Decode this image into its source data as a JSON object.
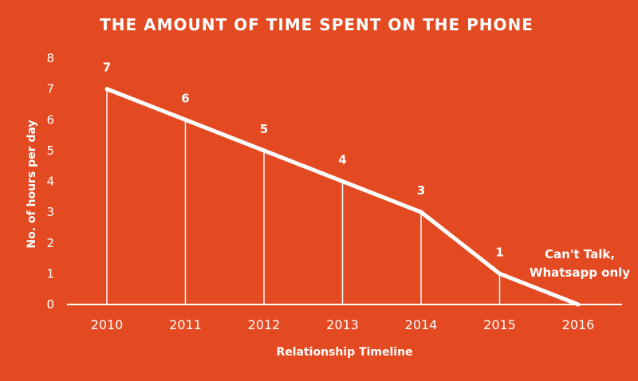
{
  "colors": {
    "background": "#E44A22",
    "foreground": "#FFFFFF"
  },
  "chart_data": {
    "type": "line",
    "title": "THE AMOUNT OF TIME SPENT ON THE PHONE",
    "xlabel": "Relationship Timeline",
    "ylabel": "No. of hours per day",
    "categories": [
      "2010",
      "2011",
      "2012",
      "2013",
      "2014",
      "2015",
      "2016"
    ],
    "series": [
      {
        "values": [
          7,
          6,
          5,
          4,
          3,
          1,
          0
        ]
      }
    ],
    "data_labels": [
      "7",
      "6",
      "5",
      "4",
      "3",
      "1",
      [
        "Can't Talk,",
        "Whatsapp only"
      ]
    ],
    "ylim": [
      0,
      8
    ],
    "yticks": [
      "0",
      "1",
      "2",
      "3",
      "4",
      "5",
      "6",
      "7",
      "8"
    ],
    "drop_lines": true,
    "grid": false,
    "legend": "none"
  }
}
